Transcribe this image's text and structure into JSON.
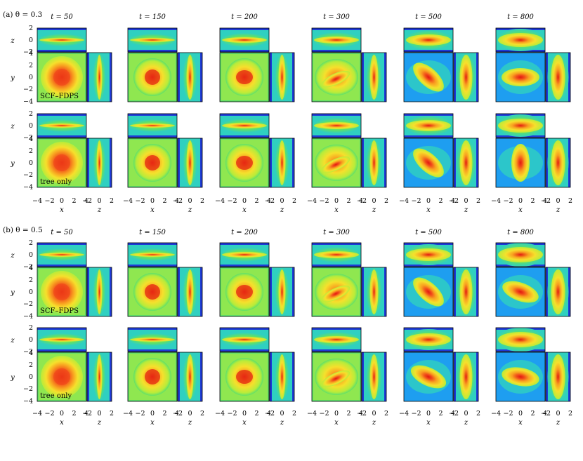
{
  "sections": [
    {
      "label": "(a)",
      "theta": "θ = 0.3"
    },
    {
      "label": "(b)",
      "theta": "θ = 0.5"
    }
  ],
  "times": [
    "t = 50",
    "t = 150",
    "t = 200",
    "t = 300",
    "t = 500",
    "t = 800"
  ],
  "row_labels": [
    "SCF–FDPS",
    "tree only"
  ],
  "axis_names": {
    "x": "x",
    "y": "y",
    "z": "z"
  },
  "ticks": {
    "xy": [
      "−4",
      "−2",
      "0",
      "2",
      "4"
    ],
    "z_horizontal": [
      "−2",
      "0",
      "2"
    ],
    "z_vertical": [
      "2",
      "0",
      "−2"
    ],
    "y_vertical": [
      "4",
      "2",
      "0",
      "−2",
      "−4"
    ]
  },
  "colormap": [
    "#1e3ad6",
    "#1e9ef0",
    "#2fd0c0",
    "#5ee06a",
    "#b8ec3a",
    "#f6e02c",
    "#f8a020",
    "#f0481a",
    "#e21a10"
  ],
  "morphology": [
    {
      "time": "t = 50",
      "xy": "round disk, strong core",
      "z_height": "thin"
    },
    {
      "time": "t = 150",
      "xy": "round",
      "z_height": "thin"
    },
    {
      "time": "t = 200",
      "xy": "round, slight oval",
      "z_height": "thin"
    },
    {
      "time": "t = 300",
      "xy": "bar forming",
      "z_height": "thin"
    },
    {
      "time": "t = 500",
      "xy": "tilted bar",
      "z_height": "thicker"
    },
    {
      "time": "t = 800",
      "xy": "bar",
      "z_height": "thick"
    }
  ]
}
